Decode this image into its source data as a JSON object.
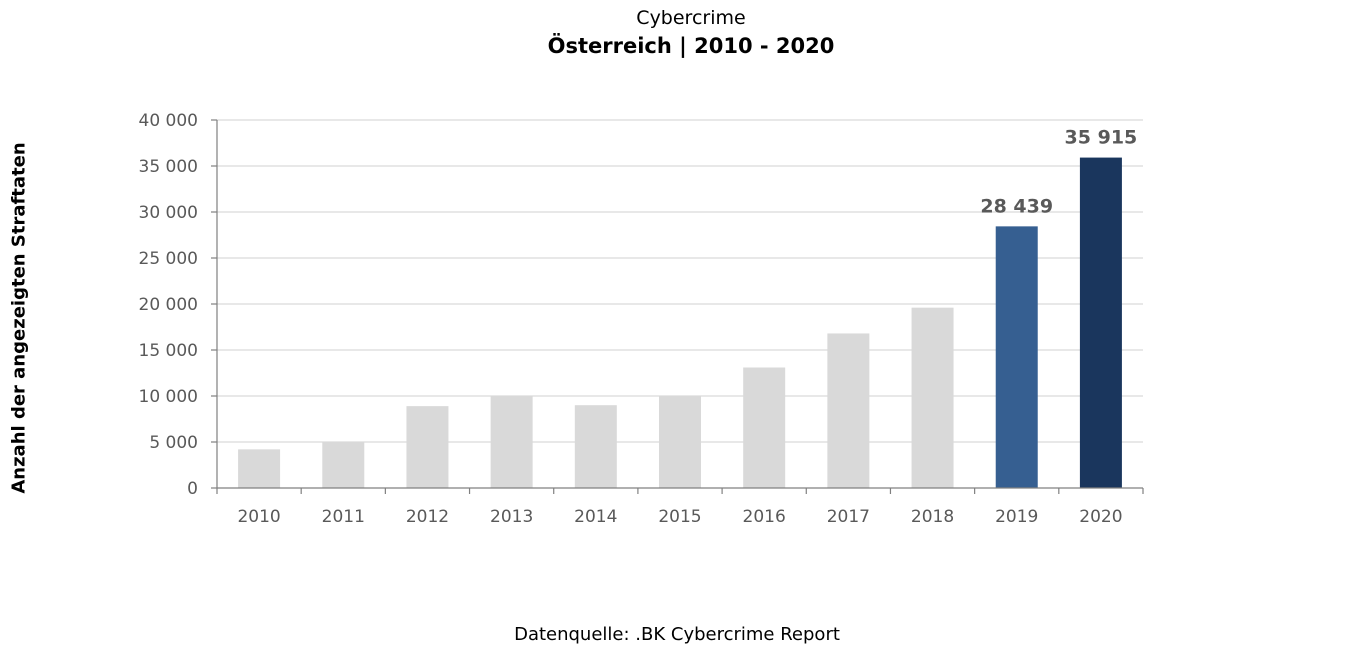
{
  "chart_data": {
    "type": "bar",
    "title": "Cybercrime",
    "subtitle": "Österreich |  2010 - 2020",
    "ylabel": "Anzahl der angezeigten Straftaten",
    "xlabel": "",
    "source": "Datenquelle: .BK Cybercrime Report",
    "categories": [
      "2010",
      "2011",
      "2012",
      "2013",
      "2014",
      "2015",
      "2016",
      "2017",
      "2018",
      "2019",
      "2020"
    ],
    "values": [
      4200,
      5000,
      8900,
      10000,
      9000,
      10000,
      13100,
      16800,
      19600,
      28439,
      35915
    ],
    "ylim": [
      0,
      40000
    ],
    "yticks": [
      0,
      5000,
      10000,
      15000,
      20000,
      25000,
      30000,
      35000,
      40000
    ],
    "ytick_labels": [
      "0",
      "5 000",
      "10 000",
      "15 000",
      "20 000",
      "25 000",
      "30 000",
      "35 000",
      "40 000"
    ],
    "data_labels": [
      "",
      "",
      "",
      "",
      "",
      "",
      "",
      "",
      "",
      "28 439",
      "35 915"
    ],
    "grid": true,
    "colors": {
      "default": "#d9d9d9",
      "highlight_2019": "#365f91",
      "highlight_2020": "#1a365d",
      "axis": "#808080",
      "grid": "#d9d9d9"
    },
    "bar_colors": [
      "#d9d9d9",
      "#d9d9d9",
      "#d9d9d9",
      "#d9d9d9",
      "#d9d9d9",
      "#d9d9d9",
      "#d9d9d9",
      "#d9d9d9",
      "#d9d9d9",
      "#365f91",
      "#1a365d"
    ]
  }
}
